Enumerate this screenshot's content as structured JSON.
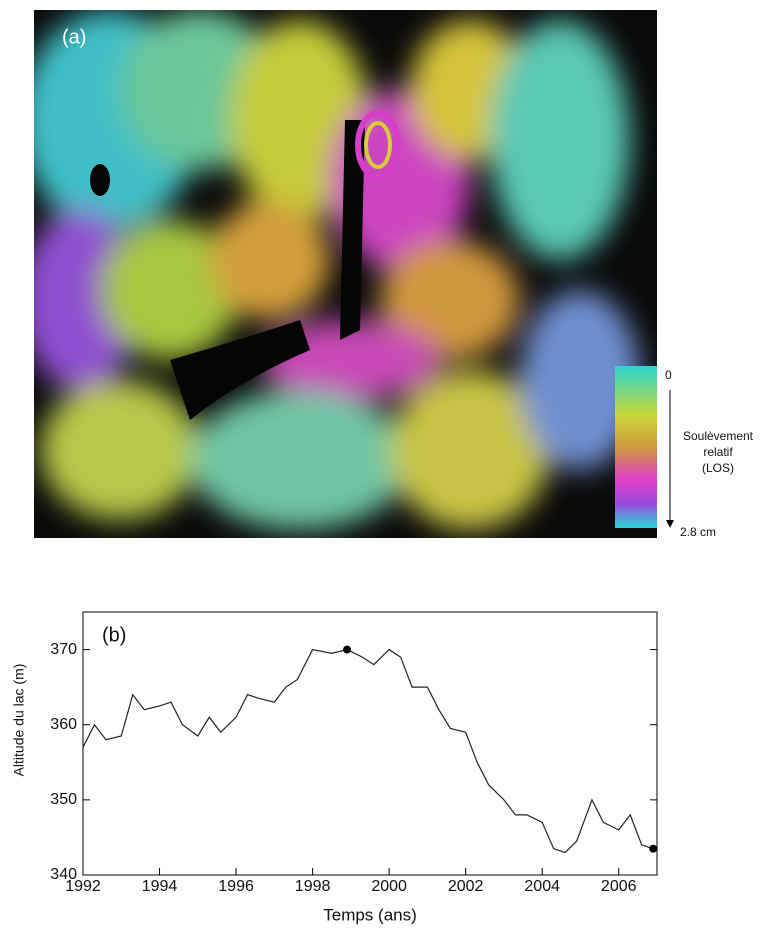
{
  "figure_a": {
    "label": "(a)",
    "colorbar": {
      "top_label": "0",
      "title": [
        "Soulèvement",
        "relatif",
        "(LOS)"
      ],
      "bottom_label": "2.8 cm"
    }
  },
  "chart_data": {
    "type": "line",
    "label": "(b)",
    "xlabel": "Temps (ans)",
    "ylabel": "Altitude du lac (m)",
    "xlim": [
      1992,
      2007
    ],
    "xticks": [
      1992,
      1994,
      1996,
      1998,
      2000,
      2002,
      2004,
      2006
    ],
    "ylim": [
      340,
      375
    ],
    "yticks": [
      340,
      350,
      360,
      370
    ],
    "series": [
      {
        "color": "#222222",
        "x": [
          1992.0,
          1992.3,
          1992.6,
          1993.0,
          1993.3,
          1993.6,
          1994.0,
          1994.3,
          1994.6,
          1995.0,
          1995.3,
          1995.6,
          1996.0,
          1996.3,
          1996.6,
          1997.0,
          1997.3,
          1997.6,
          1998.0,
          1998.5,
          1998.9,
          1999.3,
          1999.6,
          2000.0,
          2000.3,
          2000.6,
          2001.0,
          2001.3,
          2001.6,
          2002.0,
          2002.3,
          2002.6,
          2003.0,
          2003.3,
          2003.6,
          2004.0,
          2004.3,
          2004.6,
          2004.9,
          2005.3,
          2005.6,
          2006.0,
          2006.3,
          2006.6,
          2006.9
        ],
        "values": [
          357,
          360,
          358,
          358.5,
          364,
          362,
          362.5,
          363,
          360,
          358.5,
          361,
          359,
          361,
          364,
          363.5,
          363,
          365,
          366,
          370,
          369.5,
          370,
          369,
          368,
          370,
          369,
          365,
          365,
          362,
          359.5,
          359,
          355,
          352,
          350,
          348,
          348,
          347,
          343.5,
          343,
          344.5,
          350,
          347,
          346,
          348,
          344,
          343.5
        ]
      }
    ],
    "points": {
      "color": "#000000",
      "x": [
        1998.9,
        2006.9
      ],
      "values": [
        370,
        343.5
      ]
    }
  }
}
